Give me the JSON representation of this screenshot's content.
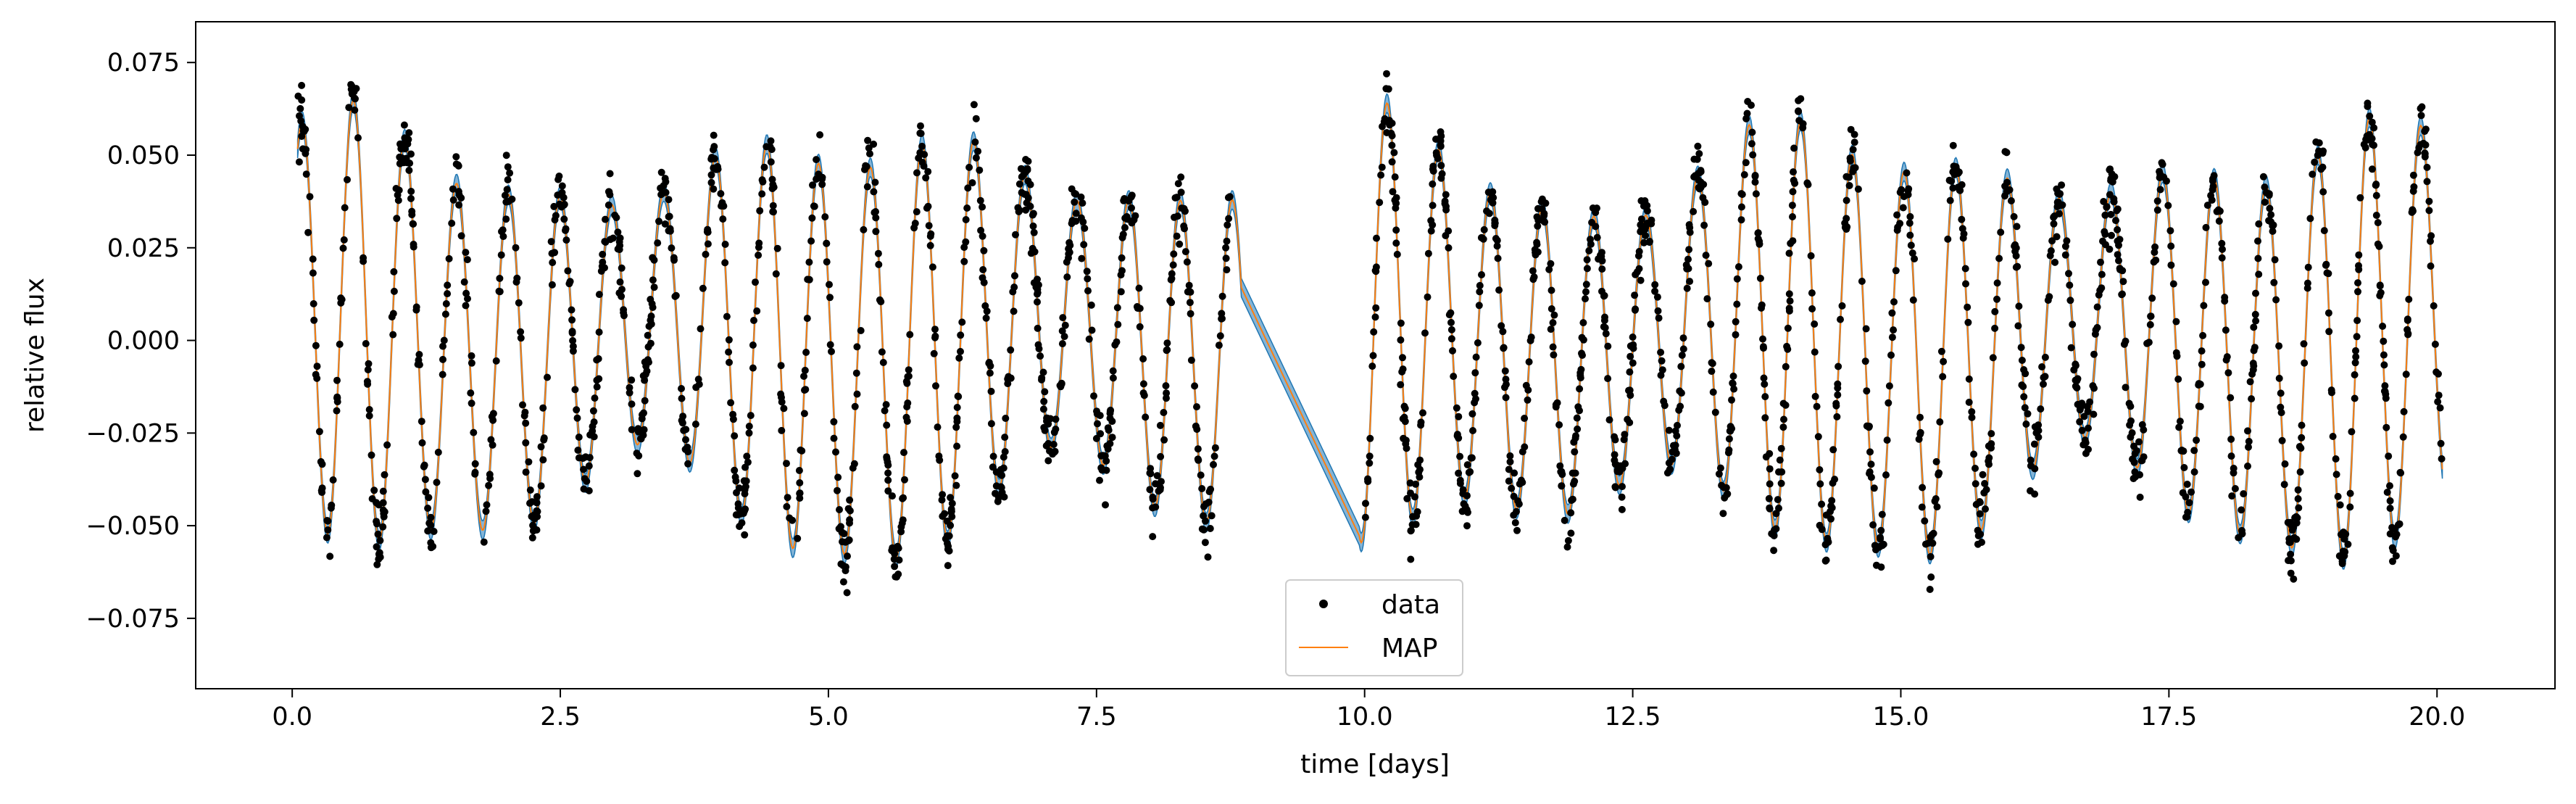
{
  "chart_data": {
    "type": "scatter",
    "title": "",
    "xlabel": "time [days]",
    "ylabel": "relative flux",
    "xlim": [
      -0.9,
      21.1
    ],
    "ylim": [
      -0.094,
      0.086
    ],
    "xticks": [
      0.0,
      2.5,
      5.0,
      7.5,
      10.0,
      12.5,
      15.0,
      17.5,
      20.0
    ],
    "xtick_labels": [
      "0.0",
      "2.5",
      "5.0",
      "7.5",
      "10.0",
      "12.5",
      "15.0",
      "17.5",
      "20.0"
    ],
    "yticks": [
      -0.075,
      -0.05,
      -0.025,
      0.0,
      0.025,
      0.05,
      0.075
    ],
    "ytick_labels": [
      "−0.075",
      "−0.050",
      "−0.025",
      "0.000",
      "0.025",
      "0.050",
      "0.075"
    ],
    "grid": false,
    "legend_position": "lower-center",
    "legend": [
      {
        "label": "data",
        "marker": "dot",
        "color": "#000000"
      },
      {
        "label": "MAP",
        "marker": "line",
        "color": "#ff7f0e"
      }
    ],
    "series": [
      {
        "name": "data",
        "kind": "points",
        "color": "#000000"
      },
      {
        "name": "MAP",
        "kind": "line",
        "color": "#ff7f0e"
      }
    ],
    "uncertainty_band": {
      "color": "#1f77b4"
    },
    "gap": {
      "start": 8.85,
      "end": 9.95
    }
  }
}
